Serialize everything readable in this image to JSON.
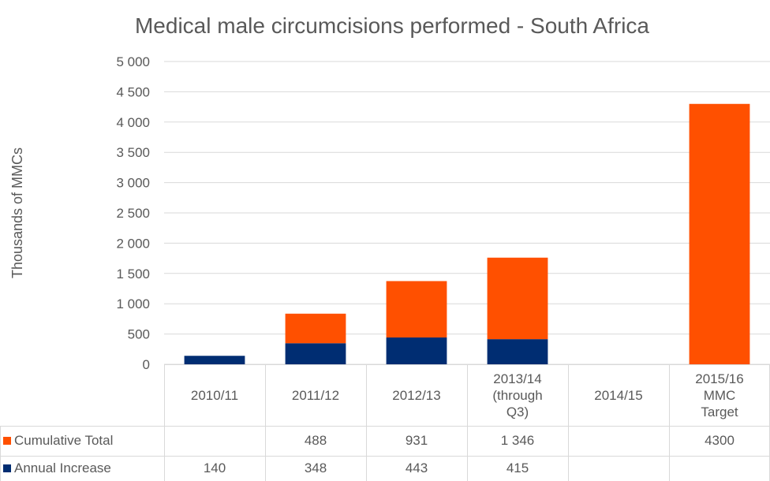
{
  "chart_data": {
    "type": "stacked_bar",
    "title": "Medical male circumcisions performed - South Africa",
    "y_label": "Thousands of MMCs",
    "categories": [
      "2010/11",
      "2011/12",
      "2012/13",
      "2013/14 (through Q3)",
      "2014/15",
      "2015/16 MMC Target"
    ],
    "series": [
      {
        "name": "Cumulative Total",
        "color": "#ff5000",
        "values": [
          null,
          488,
          931,
          1346,
          null,
          4300
        ],
        "value_labels": [
          null,
          "488",
          "931",
          "1 346",
          null,
          "4300"
        ]
      },
      {
        "name": "Annual Increase",
        "color": "#002d72",
        "values": [
          140,
          348,
          443,
          415,
          null,
          null
        ]
      }
    ],
    "ylim": [
      0,
      5000
    ],
    "yticks": [
      0,
      500,
      {
        "value": 1000,
        "label": "1 000"
      },
      {
        "value": 1500,
        "label": "1 500"
      },
      {
        "value": 2000,
        "label": "2 000"
      },
      {
        "value": 2500,
        "label": "2 500"
      },
      {
        "value": 3000,
        "label": "3 000"
      },
      {
        "value": 3500,
        "label": "3 500"
      },
      {
        "value": 4000,
        "label": "4 000"
      },
      {
        "value": 4500,
        "label": "4 500"
      },
      {
        "value": 5000,
        "label": "5 000"
      }
    ],
    "grid": true
  }
}
